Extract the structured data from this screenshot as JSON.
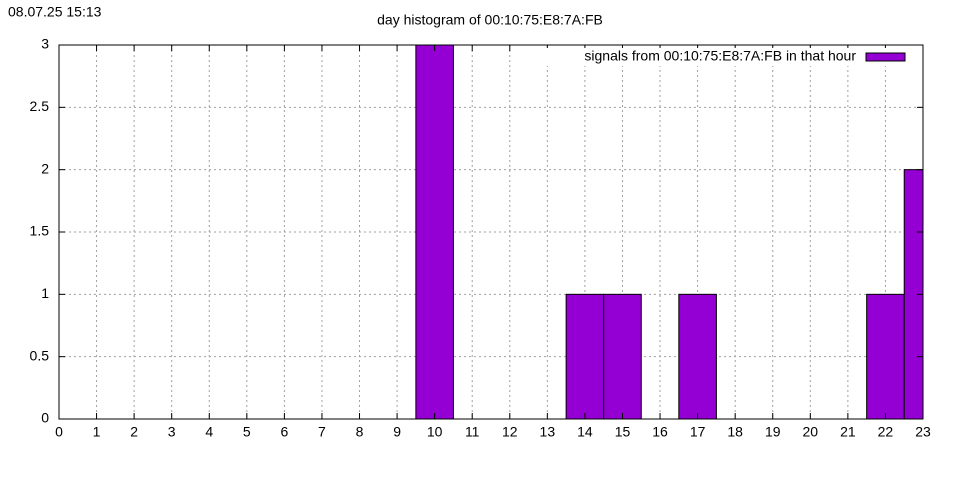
{
  "chart_data": {
    "type": "bar",
    "timestamp": "08.07.25 15:13",
    "title": "day histogram of 00:10:75:E8:7A:FB",
    "x": [
      0,
      1,
      2,
      3,
      4,
      5,
      6,
      7,
      8,
      9,
      10,
      11,
      12,
      13,
      14,
      15,
      16,
      17,
      18,
      19,
      20,
      21,
      22,
      23
    ],
    "series": [
      {
        "name": "signals from 00:10:75:E8:7A:FB in that hour",
        "color": "#9400d3",
        "values": [
          0,
          0,
          0,
          0,
          0,
          0,
          0,
          0,
          0,
          0,
          3,
          0,
          0,
          0,
          1,
          1,
          0,
          1,
          0,
          0,
          0,
          0,
          1,
          2
        ]
      }
    ],
    "xlim": [
      0,
      23
    ],
    "xticks": [
      0,
      1,
      2,
      3,
      4,
      5,
      6,
      7,
      8,
      9,
      10,
      11,
      12,
      13,
      14,
      15,
      16,
      17,
      18,
      19,
      20,
      21,
      22,
      23
    ],
    "ylim": [
      0,
      3
    ],
    "yticks": [
      0,
      0.5,
      1,
      1.5,
      2,
      2.5,
      3
    ],
    "grid": true,
    "legend": "top-right"
  }
}
